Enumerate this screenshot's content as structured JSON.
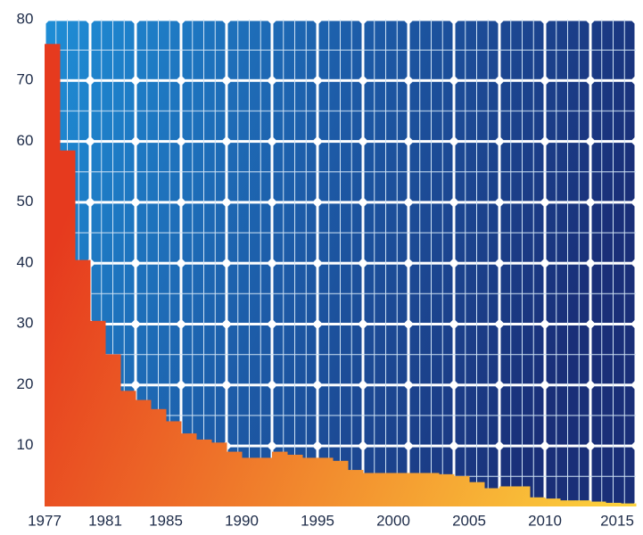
{
  "chart_data": {
    "type": "bar",
    "x": [
      1977,
      1978,
      1979,
      1980,
      1981,
      1982,
      1983,
      1984,
      1985,
      1986,
      1987,
      1988,
      1989,
      1990,
      1991,
      1992,
      1993,
      1994,
      1995,
      1996,
      1997,
      1998,
      1999,
      2000,
      2001,
      2002,
      2003,
      2004,
      2005,
      2006,
      2007,
      2008,
      2009,
      2010,
      2011,
      2012,
      2013,
      2014,
      2015
    ],
    "values": [
      76,
      58.5,
      40.5,
      30.5,
      25,
      19,
      17.5,
      16,
      14,
      12,
      11,
      10.5,
      9,
      8,
      8,
      9,
      8.5,
      8,
      8,
      7.5,
      6,
      5.5,
      5.5,
      5.5,
      5.5,
      5.5,
      5.3,
      5,
      4,
      3,
      3.3,
      3.3,
      1.5,
      1.3,
      1,
      1,
      0.8,
      0.6,
      0.5
    ],
    "xlim": [
      1977,
      2016
    ],
    "xticks": [
      1977,
      1981,
      1985,
      1990,
      1995,
      2000,
      2005,
      2010,
      2015
    ],
    "ylim": [
      0,
      80
    ],
    "yticks": [
      10,
      20,
      30,
      40,
      50,
      60,
      70,
      80
    ],
    "color": [
      "#e63a1e",
      "#fcd23c"
    ]
  }
}
